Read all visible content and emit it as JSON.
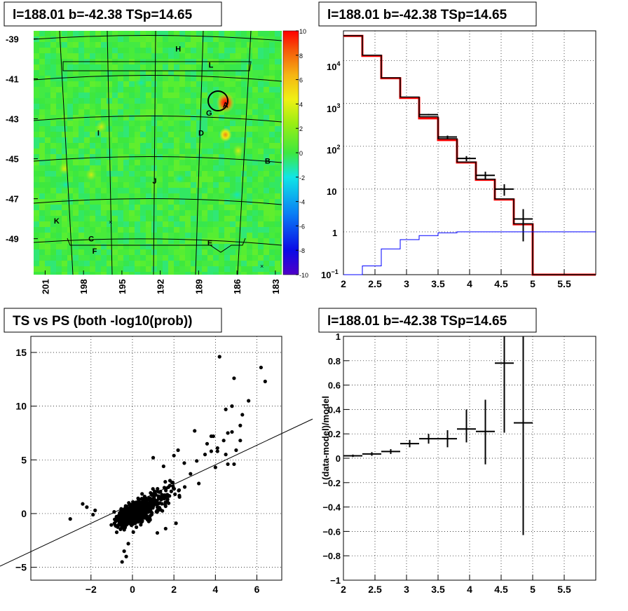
{
  "panels": {
    "map_title": "l=188.01 b=-42.38 TSp=14.65",
    "hist_title": "l=188.01 b=-42.38 TSp=14.65",
    "scatter_title": "TS vs PS (both -log10(prob))",
    "ratio_title": "l=188.01 b=-42.38 TSp=14.65"
  },
  "chart_data": [
    {
      "type": "heatmap",
      "title": "l=188.01 b=-42.38 TSp=14.65",
      "x_ticks": [
        "201",
        "198",
        "195",
        "192",
        "189",
        "186",
        "183"
      ],
      "y_ticks": [
        "-39",
        "-41",
        "-43",
        "-45",
        "-47",
        "-49"
      ],
      "z_ticks": [
        "10",
        "8",
        "6",
        "4",
        "2",
        "0",
        "-2",
        "-4",
        "-6",
        "-8",
        "-10"
      ],
      "zlim": [
        -10,
        10
      ],
      "grid": true,
      "source_labels": [
        {
          "name": "H",
          "l": 190.6,
          "b": -39.5
        },
        {
          "name": "L",
          "l": 188.0,
          "b": -40.3
        },
        {
          "name": "A",
          "l": 186.9,
          "b": -42.3
        },
        {
          "name": "G",
          "l": 188.2,
          "b": -42.7
        },
        {
          "name": "D",
          "l": 188.8,
          "b": -43.7
        },
        {
          "name": "I",
          "l": 196.7,
          "b": -43.7
        },
        {
          "name": "B",
          "l": 183.6,
          "b": -45.1
        },
        {
          "name": "J",
          "l": 192.4,
          "b": -46.1
        },
        {
          "name": "K",
          "l": 200.1,
          "b": -48.1
        },
        {
          "name": "C",
          "l": 197.4,
          "b": -49.0
        },
        {
          "name": "E",
          "l": 188.1,
          "b": -49.2
        },
        {
          "name": "F",
          "l": 197.1,
          "b": -49.6
        }
      ],
      "hot_spots": [
        {
          "l": 186.9,
          "b": -42.2,
          "value": 10
        },
        {
          "l": 186.9,
          "b": -43.8,
          "value": 6
        },
        {
          "l": 197.4,
          "b": -45.8,
          "value": 4
        },
        {
          "l": 196.6,
          "b": -43.4,
          "value": 3
        },
        {
          "l": 185.9,
          "b": -44.6,
          "value": 3
        },
        {
          "l": 199.5,
          "b": -45.5,
          "value": 3
        }
      ],
      "circle": {
        "l": 186.9,
        "b": -42.3
      }
    },
    {
      "type": "line",
      "title": "l=188.01 b=-42.38 TSp=14.65",
      "xlim": [
        2,
        6
      ],
      "ylim": [
        0.1,
        50000
      ],
      "log_y": true,
      "grid": true,
      "x_ticks": [
        "2",
        "2.5",
        "3",
        "3.5",
        "4",
        "4.5",
        "5",
        "5.5"
      ],
      "y_ticks": [
        "10^4",
        "10^3",
        "10^2",
        "10",
        "1",
        "10^-1"
      ],
      "series": [
        {
          "color": "#ff0000",
          "style": "step",
          "edges": [
            2,
            2.3,
            2.6,
            2.9,
            3.2,
            3.5,
            3.8,
            4.1,
            4.4,
            4.7,
            5.0,
            5.3,
            6.0
          ],
          "values": [
            38000,
            13000,
            3900,
            1350,
            450,
            140,
            42,
            16.5,
            5.7,
            1.5,
            0.1,
            0.1
          ]
        },
        {
          "color": "#000000",
          "style": "step",
          "edges": [
            2,
            2.3,
            2.6,
            2.9,
            3.2,
            3.5,
            3.8,
            4.1,
            4.4,
            4.7,
            5.0,
            5.3,
            6.0
          ],
          "values": [
            38500,
            13500,
            4000,
            1420,
            490,
            150,
            43,
            17,
            5.9,
            1.55,
            0.1,
            0.1
          ]
        },
        {
          "color": "#000000",
          "style": "points",
          "x": [
            3.35,
            3.65,
            3.95,
            4.25,
            4.55,
            4.85
          ],
          "y": [
            550,
            165,
            52,
            21,
            10,
            2
          ],
          "xerr": 0.15,
          "yerr_lo": [
            20,
            13,
            7,
            4.5,
            3,
            1.4
          ],
          "yerr_hi": [
            20,
            13,
            7,
            4.5,
            3,
            1.4
          ]
        },
        {
          "color": "#0000ff",
          "style": "step",
          "edges": [
            2,
            2.3,
            2.6,
            2.9,
            3.2,
            3.5,
            3.8,
            4.1,
            4.4,
            4.7,
            5.0,
            5.3,
            6.0
          ],
          "values": [
            0.06,
            0.16,
            0.4,
            0.66,
            0.82,
            0.95,
            1.0,
            1.0,
            1.0,
            1.0,
            1.0,
            1.0
          ]
        }
      ]
    },
    {
      "type": "scatter",
      "title": "TS vs PS (both -log10(prob))",
      "xlim": [
        -4.9,
        7.2
      ],
      "ylim": [
        -6.2,
        16.5
      ],
      "grid": true,
      "x_ticks": [
        "−2",
        "0",
        "2",
        "4",
        "6"
      ],
      "y_ticks": [
        "−5",
        "0",
        "5",
        "10",
        "15"
      ],
      "fit_line": {
        "slope": 0.97,
        "intercept": 0.0
      },
      "points_outliers": [
        [
          -3.0,
          -0.5
        ],
        [
          -2.4,
          0.9
        ],
        [
          -2.2,
          0.6
        ],
        [
          -1.9,
          -0.1
        ],
        [
          -1.8,
          0.3
        ],
        [
          4.2,
          14.6
        ],
        [
          6.2,
          13.6
        ],
        [
          6.4,
          12.3
        ],
        [
          4.9,
          12.6
        ],
        [
          5.3,
          9.2
        ],
        [
          5.6,
          10.5
        ],
        [
          4.5,
          9.7
        ],
        [
          4.8,
          10.0
        ],
        [
          5.2,
          8.2
        ],
        [
          3.0,
          7.7
        ],
        [
          3.9,
          7.2
        ],
        [
          4.6,
          7.5
        ],
        [
          4.8,
          7.6
        ],
        [
          4.9,
          4.6
        ],
        [
          5.0,
          5.9
        ],
        [
          5.2,
          6.8
        ],
        [
          4.4,
          6.8
        ],
        [
          4.1,
          6.1
        ],
        [
          3.5,
          5.5
        ],
        [
          4.0,
          4.3
        ],
        [
          4.6,
          4.6
        ],
        [
          3.8,
          5.8
        ],
        [
          3.1,
          4.9
        ],
        [
          3.6,
          6.5
        ],
        [
          3.8,
          7.2
        ],
        [
          4.1,
          5.8
        ],
        [
          4.5,
          5.5
        ],
        [
          2.5,
          4.7
        ],
        [
          2.0,
          5.4
        ],
        [
          -0.3,
          -4.0
        ],
        [
          -0.5,
          -4.5
        ],
        [
          -0.4,
          -3.5
        ],
        [
          -0.2,
          -2.8
        ],
        [
          3.2,
          2.8
        ],
        [
          2.8,
          3.7
        ],
        [
          1.2,
          -1.8
        ],
        [
          1.6,
          -1.4
        ],
        [
          2.1,
          -0.9
        ],
        [
          1.0,
          5.2
        ],
        [
          1.5,
          4.4
        ],
        [
          2.2,
          5.9
        ]
      ]
    },
    {
      "type": "scatter",
      "title": "l=188.01 b=-42.38 TSp=14.65",
      "ylabel": "(data-model)/model",
      "xlim": [
        2,
        6
      ],
      "ylim": [
        -1,
        1
      ],
      "grid": true,
      "x_ticks": [
        "2",
        "2.5",
        "3",
        "3.5",
        "4",
        "4.5",
        "5",
        "5.5"
      ],
      "y_ticks": [
        "1",
        "0.8",
        "0.6",
        "0.4",
        "0.2",
        "0",
        "−0.2",
        "−0.4",
        "−0.6",
        "−0.8",
        "−1"
      ],
      "x": [
        2.15,
        2.45,
        2.75,
        3.05,
        3.35,
        3.65,
        3.95,
        4.25,
        4.55,
        4.85
      ],
      "y": [
        0.02,
        0.035,
        0.055,
        0.12,
        0.16,
        0.16,
        0.24,
        0.22,
        0.78,
        0.29
      ],
      "xerr": 0.15,
      "yerr_lo": [
        0.01,
        0.015,
        0.02,
        0.03,
        0.04,
        0.07,
        0.11,
        0.27,
        0.57,
        0.92
      ],
      "yerr_hi": [
        0.01,
        0.015,
        0.02,
        0.03,
        0.04,
        0.07,
        0.16,
        0.26,
        0.24,
        0.71
      ]
    }
  ]
}
